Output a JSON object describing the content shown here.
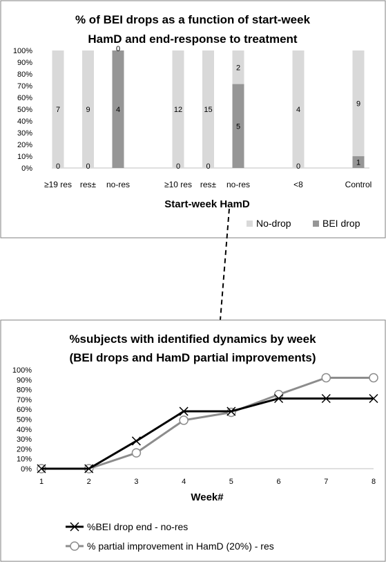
{
  "chart_data": [
    {
      "type": "bar",
      "stacked": true,
      "percent": true,
      "title_lines": [
        "% of BEI drops as a function of start-week",
        "HamD and end-response to treatment"
      ],
      "xlabel": "Start-week HamD",
      "ylabel": "",
      "ylim": [
        0,
        100
      ],
      "y_ticks": [
        "0%",
        "10%",
        "20%",
        "30%",
        "40%",
        "50%",
        "60%",
        "70%",
        "80%",
        "90%",
        "100%"
      ],
      "categories": [
        "≥19 res",
        "res±",
        "no-res",
        "≥10 res",
        "res±",
        "no-res",
        "<8",
        "Control"
      ],
      "series": [
        {
          "name": "No-drop",
          "values": [
            7,
            9,
            0,
            12,
            15,
            2,
            4,
            9
          ],
          "color": "#d9d9d9"
        },
        {
          "name": "BEI drop",
          "values": [
            0,
            0,
            4,
            0,
            0,
            5,
            0,
            1
          ],
          "color": "#969696"
        }
      ],
      "legend_position": "bottom-right",
      "grid": false
    },
    {
      "type": "line",
      "title_lines": [
        "%subjects with identified dynamics by week",
        "(BEI drops and HamD partial improvements)"
      ],
      "xlabel": "Week#",
      "ylabel": "",
      "x": [
        1,
        2,
        3,
        4,
        5,
        6,
        7,
        8
      ],
      "ylim": [
        0,
        100
      ],
      "y_ticks": [
        "0%",
        "10%",
        "20%",
        "30%",
        "40%",
        "50%",
        "60%",
        "70%",
        "80%",
        "90%",
        "100%"
      ],
      "series": [
        {
          "name": "%BEI drop end - no-res",
          "values": [
            0,
            0,
            28,
            58,
            58,
            71,
            71,
            71
          ],
          "color": "#000000",
          "marker": "x"
        },
        {
          "name": "% partial improvement in HamD (20%) - res",
          "values": [
            0,
            0,
            16,
            49,
            57,
            75,
            92,
            92
          ],
          "color": "#8c8c8c",
          "marker": "circle"
        }
      ],
      "legend_position": "bottom",
      "grid": false
    }
  ]
}
